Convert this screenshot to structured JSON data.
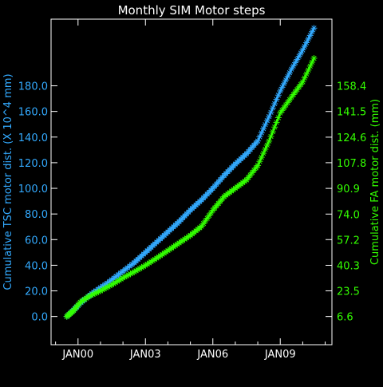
{
  "chart_data": {
    "type": "line",
    "title": "Monthly SIM Motor steps",
    "xlabel": "",
    "x_tick_labels": [
      "JAN00",
      "JAN03",
      "JAN06",
      "JAN09"
    ],
    "x_tick_years": [
      2000,
      2003,
      2006,
      2009
    ],
    "xlim": [
      1998.8,
      2011.3
    ],
    "y_left": {
      "label": "Cumulative TSC motor dist. (X 10^4 mm)",
      "ticks": [
        "0.0",
        "20.0",
        "40.0",
        "60.0",
        "80.0",
        "100.0",
        "120.0",
        "140.0",
        "160.0",
        "180.0"
      ],
      "tick_values": [
        0,
        20,
        40,
        60,
        80,
        100,
        120,
        140,
        160,
        180
      ],
      "ylim": [
        -22,
        232
      ],
      "color": "#33aaff"
    },
    "y_right": {
      "label": "Cumulative FA motor dist. (mm)",
      "ticks": [
        "6.6",
        "23.5",
        "40.3",
        "57.2",
        "74.0",
        "90.9",
        "107.8",
        "124.6",
        "141.5",
        "158.4"
      ],
      "tick_values": [
        6.6,
        23.5,
        40.3,
        57.2,
        74.0,
        90.9,
        107.8,
        124.6,
        141.5,
        158.4
      ],
      "color": "#33ff00"
    },
    "series": [
      {
        "axis": "left",
        "color": "#33aaff",
        "marker": "asterisk",
        "x": [
          1999.5,
          1999.8,
          2000.2,
          2000.7,
          2001.3,
          2001.9,
          2002.5,
          2003.0,
          2003.5,
          2004.0,
          2004.5,
          2005.0,
          2005.5,
          2006.0,
          2006.5,
          2007.0,
          2007.5,
          2008.0,
          2008.5,
          2009.0,
          2009.5,
          2010.0,
          2010.5
        ],
        "y": [
          0,
          5,
          12,
          19,
          26,
          34,
          42,
          50,
          58,
          66,
          74,
          83,
          91,
          100,
          110,
          119,
          127,
          137,
          156,
          176,
          193,
          208,
          225
        ]
      },
      {
        "axis": "right",
        "color": "#33ff00",
        "marker": "asterisk",
        "x": [
          1999.5,
          1999.8,
          2000.1,
          2000.5,
          2001.0,
          2001.5,
          2002.0,
          2002.5,
          2003.0,
          2003.5,
          2004.0,
          2004.5,
          2005.0,
          2005.5,
          2006.0,
          2006.5,
          2007.0,
          2007.5,
          2008.0,
          2008.5,
          2009.0,
          2009.5,
          2010.0,
          2010.5
        ],
        "y": [
          6.6,
          10.5,
          16.0,
          20.0,
          23.5,
          27.5,
          32.0,
          36.0,
          40.3,
          45.0,
          50.0,
          55.0,
          60.0,
          66.0,
          76.5,
          85.5,
          91.0,
          96.5,
          106.0,
          122.0,
          140.5,
          151.0,
          161.0,
          176.5
        ]
      }
    ]
  }
}
